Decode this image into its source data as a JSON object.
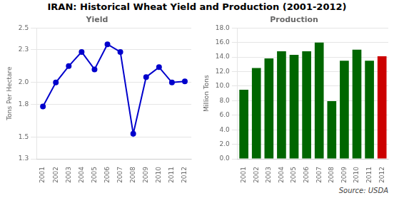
{
  "title": "IRAN:  Historical Wheat Yield and Production (2001-2012)",
  "annotations": [
    "Source: USDA"
  ],
  "chart_data": [
    {
      "type": "line",
      "title": "Yield",
      "ylabel": "Tons Per Hectare",
      "categories": [
        "2001",
        "2002",
        "2003",
        "2004",
        "2005",
        "2006",
        "2007",
        "2008",
        "2009",
        "2010",
        "2011",
        "2012"
      ],
      "values": [
        1.78,
        2.0,
        2.15,
        2.28,
        2.12,
        2.35,
        2.28,
        1.53,
        2.05,
        2.14,
        2.0,
        2.01
      ],
      "color": "#0000CC",
      "marker": "circle",
      "ylim": [
        1.3,
        2.5
      ],
      "yticks": [
        1.3,
        1.5,
        1.8,
        {
          "value": 2,
          "label": "2.0"
        },
        2.3,
        2.5
      ],
      "grid": true
    },
    {
      "type": "bar",
      "title": "Production",
      "ylabel": "Million Tons",
      "categories": [
        "2001",
        "2002",
        "2003",
        "2004",
        "2005",
        "2006",
        "2007",
        "2008",
        "2009",
        "2010",
        "2011",
        "2012"
      ],
      "values": [
        9.5,
        12.5,
        13.8,
        14.8,
        14.3,
        14.8,
        16.0,
        7.95,
        13.5,
        15.0,
        13.5,
        14.1
      ],
      "colors": [
        "#006600",
        "#006600",
        "#006600",
        "#006600",
        "#006600",
        "#006600",
        "#006600",
        "#006600",
        "#006600",
        "#006600",
        "#006600",
        "#CC0000"
      ],
      "ylim": [
        0,
        18
      ],
      "yticks": [
        {
          "value": 0,
          "label": "0.0"
        },
        {
          "value": 2,
          "label": "2.0"
        },
        {
          "value": 4,
          "label": "4.0"
        },
        {
          "value": 6,
          "label": "6.0"
        },
        {
          "value": 8,
          "label": "8.0"
        },
        {
          "value": 10,
          "label": "10.0"
        },
        {
          "value": 12,
          "label": "12.0"
        },
        {
          "value": 14,
          "label": "14.0"
        },
        {
          "value": 16,
          "label": "16.0"
        },
        {
          "value": 18,
          "label": "18.0"
        }
      ],
      "grid": true
    }
  ]
}
